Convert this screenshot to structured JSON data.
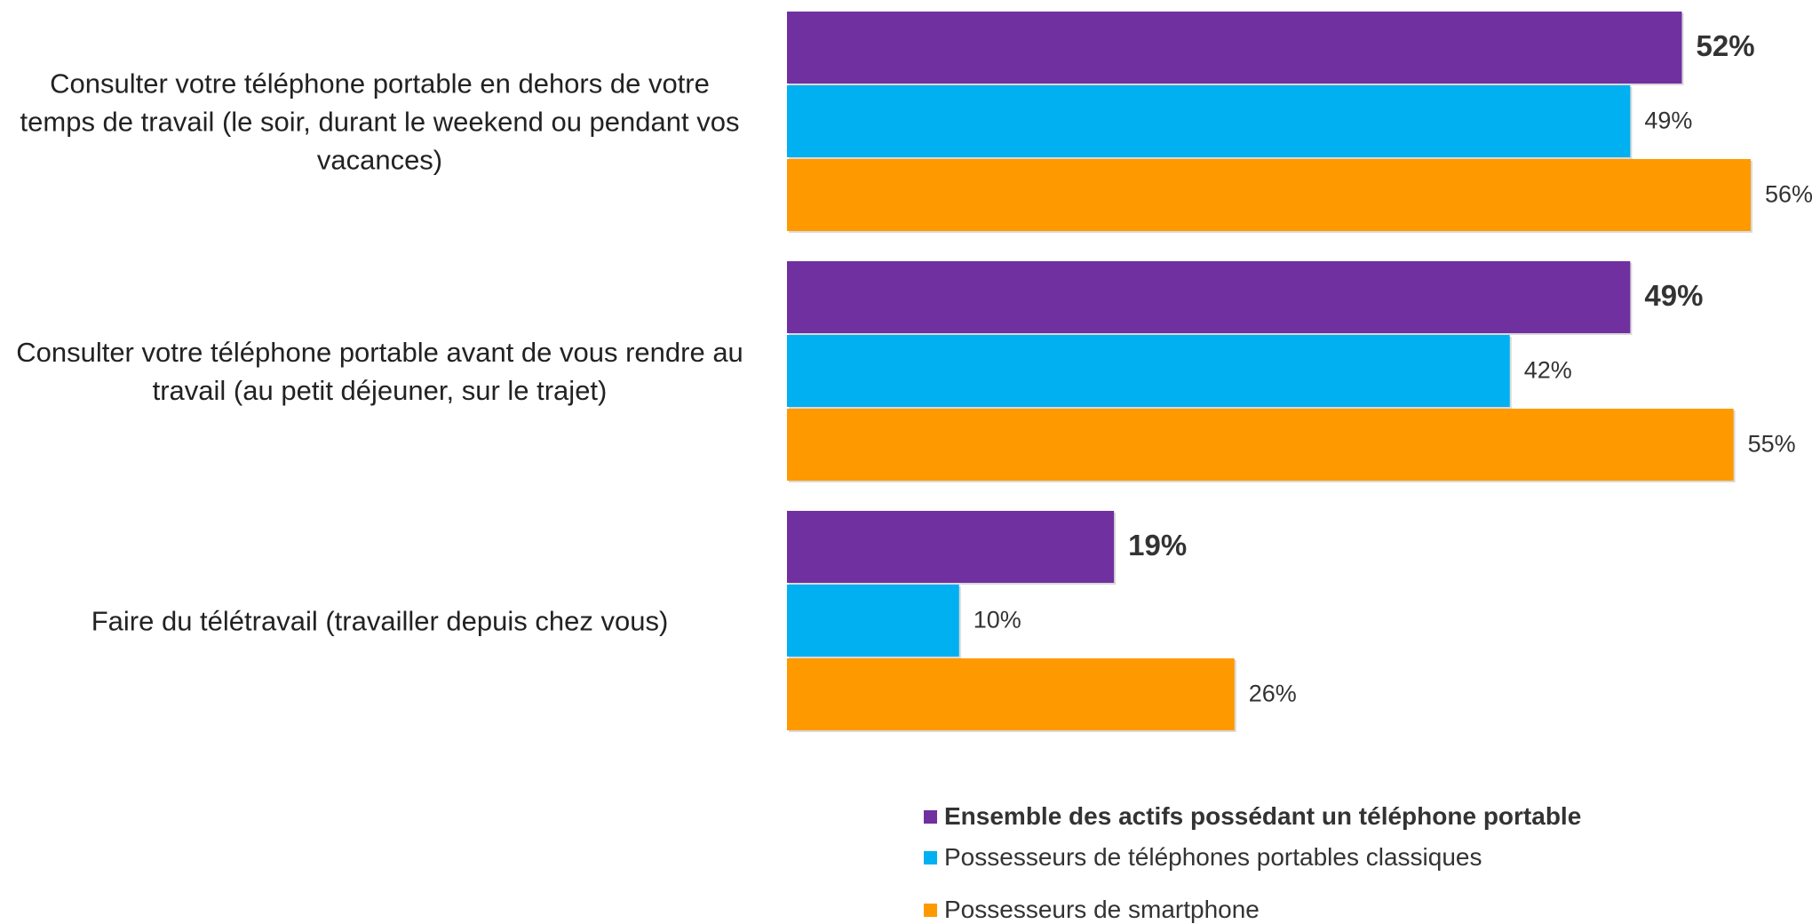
{
  "chart_data": {
    "type": "bar",
    "orientation": "horizontal",
    "categories": [
      "Consulter votre téléphone portable en dehors de votre temps de travail (le soir, durant le weekend ou pendant vos vacances)",
      "Consulter votre téléphone portable avant de vous rendre au travail (au petit déjeuner, sur le trajet)",
      "Faire du télétravail (travailler depuis chez vous)"
    ],
    "series": [
      {
        "name": "Ensemble des actifs possédant un téléphone portable",
        "color": "#7030a0",
        "values": [
          52,
          49,
          19
        ],
        "value_labels": [
          "52%",
          "49%",
          "19%"
        ]
      },
      {
        "name": "Possesseurs de téléphones portables classiques",
        "color": "#00b0f0",
        "values": [
          49,
          42,
          10
        ],
        "value_labels": [
          "49%",
          "42%",
          "10%"
        ]
      },
      {
        "name": "Possesseurs de smartphone",
        "color": "#ff9900",
        "values": [
          56,
          55,
          26
        ],
        "value_labels": [
          "56%",
          "55%",
          "26%"
        ]
      }
    ]
  }
}
